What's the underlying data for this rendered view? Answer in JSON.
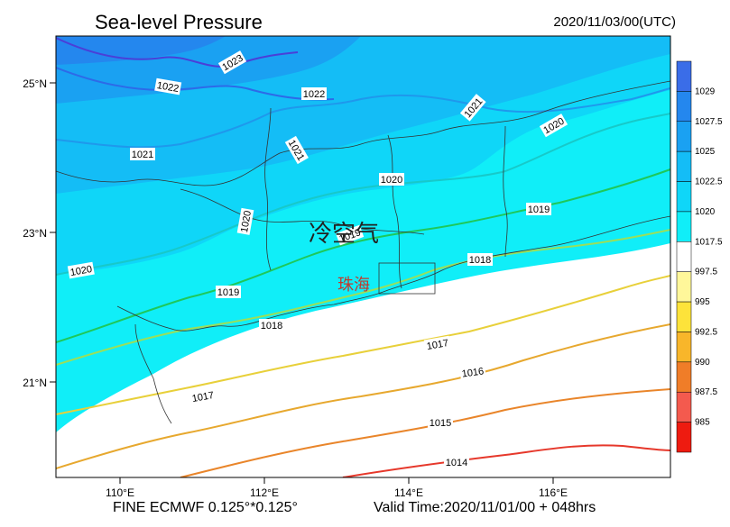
{
  "header": {
    "title": "Sea-level Pressure",
    "datetime": "2020/11/03/00(UTC)"
  },
  "footer": {
    "model": "FINE ECMWF 0.125°*0.125°",
    "valid_time": "Valid Time:2020/11/01/00 + 048hrs"
  },
  "map": {
    "lat_labels": [
      "25°N",
      "23°N",
      "21°N"
    ],
    "lon_labels": [
      "110°E",
      "112°E",
      "114°E",
      "116°E"
    ],
    "annotation_main": "冷空气",
    "annotation_city": "珠海",
    "contour_labels": [
      "1023",
      "1022",
      "1022",
      "1021",
      "1021",
      "1021",
      "1020",
      "1020",
      "1020",
      "1020",
      "1019",
      "1019",
      "1019",
      "1018",
      "1018",
      "1017",
      "1017",
      "1016",
      "1015",
      "1014"
    ]
  },
  "legend": {
    "labels": [
      "1029",
      "1027.5",
      "1025",
      "1022.5",
      "1020",
      "1017.5",
      "997.5",
      "995",
      "992.5",
      "990",
      "987.5",
      "985"
    ],
    "colors": [
      "#3a6de8",
      "#2487ee",
      "#1aa1f2",
      "#14bdf6",
      "#0fd6f8",
      "#10eef8",
      "#ffffff",
      "#fff79a",
      "#fde33a",
      "#f8b62a",
      "#f07d28",
      "#f45a4e",
      "#ee1b10"
    ]
  }
}
